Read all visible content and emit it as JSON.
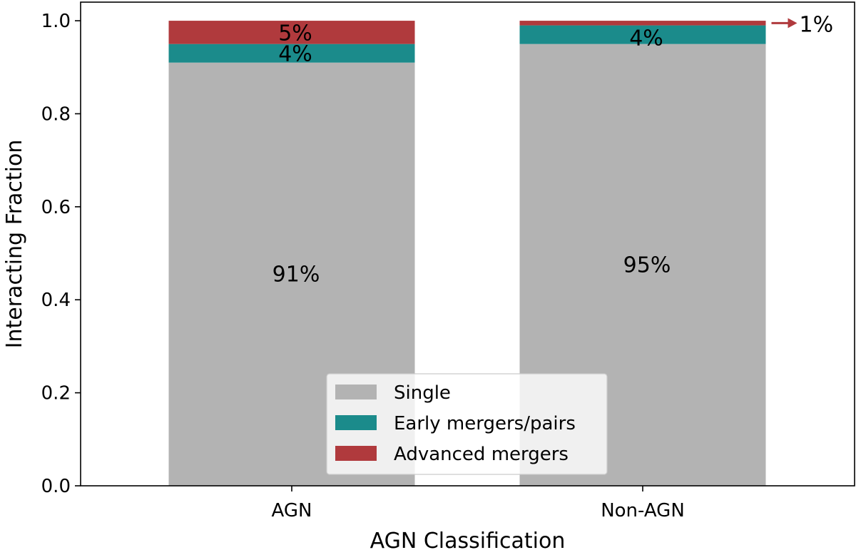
{
  "chart_data": {
    "type": "bar",
    "stacked": true,
    "categories": [
      "AGN",
      "Non-AGN"
    ],
    "series": [
      {
        "name": "Single",
        "values": [
          0.91,
          0.95
        ],
        "color": "#b3b3b3",
        "labels": [
          "91%",
          "95%"
        ]
      },
      {
        "name": "Early mergers/pairs",
        "values": [
          0.04,
          0.04
        ],
        "color": "#1b8b8b",
        "labels": [
          "4%",
          "4%"
        ]
      },
      {
        "name": "Advanced mergers",
        "values": [
          0.05,
          0.01
        ],
        "color": "#b03a3d",
        "labels": [
          "5%",
          "1%"
        ]
      }
    ],
    "title": "",
    "xlabel": "AGN Classification",
    "ylabel": "Interacting Fraction",
    "ylim": [
      0.0,
      1.04
    ],
    "yticks": [
      0.0,
      0.2,
      0.4,
      0.6,
      0.8,
      1.0
    ],
    "ytick_labels": [
      "0.0",
      "0.2",
      "0.4",
      "0.6",
      "0.8",
      "1.0"
    ],
    "grid": false,
    "legend_position": "lower-center",
    "annotation_color": "#b03a3d"
  }
}
